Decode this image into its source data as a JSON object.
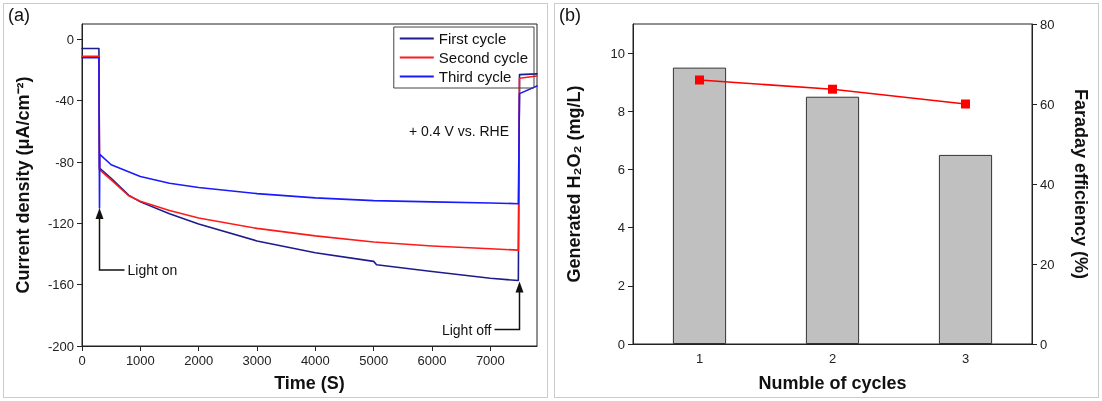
{
  "chart_data": [
    {
      "type": "line",
      "xlabel": "Time (S)",
      "ylabel": "Current density (μA/cm⁻²)",
      "xlim": [
        0,
        7800
      ],
      "xticks": [
        0,
        1000,
        2000,
        3000,
        4000,
        5000,
        6000,
        7000
      ],
      "ylim": [
        -200,
        10
      ],
      "yticks": [
        -200,
        -160,
        -120,
        -80,
        -40,
        0
      ],
      "grid": false,
      "legend": "top right",
      "marker": "none",
      "line_style": "solid",
      "annotations": [
        "(a)",
        "+ 0.4 V vs. RHE",
        {
          "text": "Light on",
          "x": 300,
          "y": -110
        },
        {
          "text": "Light off",
          "x": 7500,
          "y": -158
        }
      ],
      "series": [
        {
          "name": "First cycle",
          "color": "#1c1c8e",
          "x": [
            0,
            290,
            300,
            300,
            500,
            800,
            1000,
            1500,
            2000,
            3000,
            4000,
            5000,
            5050,
            6000,
            7000,
            7480,
            7500,
            7800
          ],
          "values": [
            -6,
            -6,
            -6,
            -84,
            -90.6,
            -101.6,
            -106,
            -113.8,
            -120.4,
            -131.5,
            -139.2,
            -144.8,
            -147,
            -151.4,
            -155.8,
            -157.3,
            -23,
            -22.5
          ]
        },
        {
          "name": "Second cycle",
          "color": "#ff1a1a",
          "x": [
            0,
            290,
            300,
            300,
            500,
            800,
            1000,
            1500,
            2000,
            3000,
            4000,
            5000,
            6000,
            7000,
            7480,
            7500,
            7800
          ],
          "values": [
            -11,
            -11,
            -11,
            -85,
            -91.7,
            -102,
            -105.6,
            -111.6,
            -116.5,
            -123.3,
            -128.2,
            -132.2,
            -134.8,
            -136.6,
            -137.5,
            -25.4,
            -23.9
          ]
        },
        {
          "name": "Third cycle",
          "color": "#1a1aff",
          "x": [
            0,
            290,
            300,
            300,
            305,
            500,
            1000,
            1500,
            2000,
            3000,
            4000,
            5000,
            6000,
            7000,
            7480,
            7500,
            7800
          ],
          "values": [
            -12,
            -12,
            -12,
            -110,
            -75,
            -81.8,
            -89.5,
            -93.9,
            -96.6,
            -100.6,
            -103.4,
            -105.2,
            -106,
            -106.7,
            -107.2,
            -35.4,
            -30.5
          ]
        }
      ]
    },
    {
      "type": "bar",
      "xlabel": "Numble of cycles",
      "ylabel": "Generated H₂O₂ (mg/L)",
      "y2label": "Faraday efficiency (%)",
      "categories": [
        "1",
        "2",
        "3"
      ],
      "ylim": [
        0,
        11
      ],
      "yticks": [
        0,
        2,
        4,
        6,
        8,
        10
      ],
      "y2lim": [
        0,
        80
      ],
      "y2ticks": [
        0,
        20,
        40,
        60,
        80
      ],
      "grid": false,
      "legend": false,
      "annotations": [
        "(b)"
      ],
      "series": [
        {
          "color": "#c0c0c0",
          "values": [
            9.5,
            8.5,
            6.5
          ]
        },
        {
          "type": "line",
          "axis": "y2",
          "color": "#ff0000",
          "marker": "square",
          "values": [
            66,
            63.7,
            60
          ]
        }
      ]
    }
  ]
}
